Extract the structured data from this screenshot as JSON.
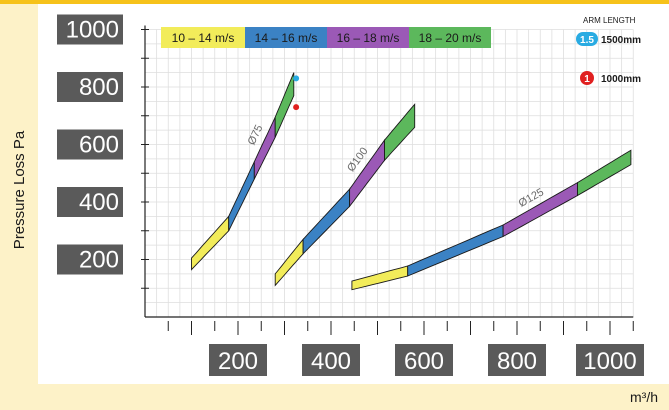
{
  "chart_data": {
    "type": "area",
    "ylabel": "Pressure Loss Pa",
    "xlabel": "m³/h",
    "xlim": [
      0,
      1050
    ],
    "ylim": [
      0,
      1000
    ],
    "x_ticks": [
      "200",
      "400",
      "600",
      "800",
      "1000"
    ],
    "y_ticks": [
      "200",
      "400",
      "600",
      "800",
      "1000"
    ],
    "grid": true,
    "legend_position": "top",
    "velocity_bands": [
      {
        "label": "10 – 14 m/s",
        "color": "#f2ec5a"
      },
      {
        "label": "14 – 16 m/s",
        "color": "#3b82c4"
      },
      {
        "label": "16 – 18 m/s",
        "color": "#9b59b6"
      },
      {
        "label": "18 – 20 m/s",
        "color": "#5cb85c"
      }
    ],
    "arm_length": {
      "title": "ARM LENGTH",
      "items": [
        {
          "badge": "1.5",
          "label": "1500mm",
          "color": "#29abe2",
          "x": 325,
          "y": 830
        },
        {
          "badge": "1",
          "label": "1000mm",
          "color": "#e02020",
          "x": 325,
          "y": 730
        }
      ]
    },
    "series": [
      {
        "name": "Ø75",
        "x": [
          100,
          180,
          235,
          280,
          320
        ],
        "y": [
          185,
          325,
          510,
          660,
          810
        ],
        "width": [
          40,
          50,
          60,
          70,
          80
        ]
      },
      {
        "name": "Ø100",
        "x": [
          280,
          340,
          440,
          515,
          580
        ],
        "y": [
          130,
          245,
          415,
          580,
          700
        ],
        "width": [
          40,
          50,
          60,
          70,
          80
        ]
      },
      {
        "name": "Ø125",
        "x": [
          445,
          565,
          770,
          930,
          1045
        ],
        "y": [
          110,
          160,
          300,
          445,
          555
        ],
        "width": [
          30,
          35,
          40,
          45,
          50
        ]
      }
    ]
  }
}
